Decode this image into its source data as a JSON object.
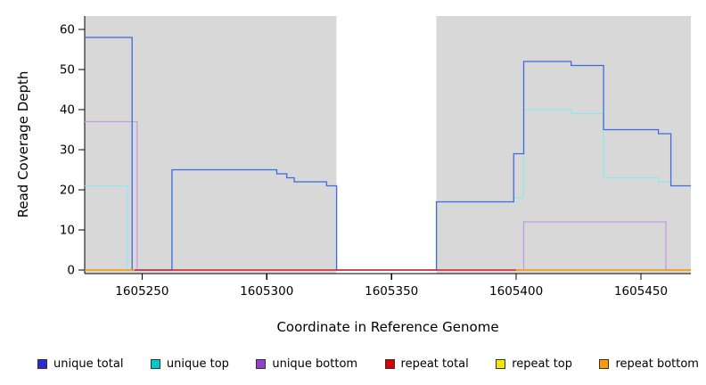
{
  "chart_data": {
    "type": "line",
    "title": "",
    "xlabel": "Coordinate in Reference Genome",
    "ylabel": "Read Coverage Depth",
    "xlim": [
      1605227,
      1605470
    ],
    "ylim": [
      0,
      63
    ],
    "x_ticks": [
      1605250,
      1605300,
      1605350,
      1605400,
      1605450
    ],
    "y_ticks": [
      0,
      10,
      20,
      30,
      40,
      50,
      60
    ],
    "grid": false,
    "legend_position": "bottom",
    "plot_background": "#d8d8d8",
    "uncovered_region_x": [
      1605328,
      1605368
    ],
    "draw_order": [
      "unique bottom",
      "unique top",
      "unique total",
      "repeat total",
      "repeat top",
      "repeat bottom"
    ],
    "series": [
      {
        "name": "unique total",
        "line_color": "#4169e1",
        "lines": [
          [
            [
              1605227,
              58
            ],
            [
              1605246,
              0
            ],
            [
              1605262,
              25
            ],
            [
              1605304,
              24
            ],
            [
              1605308,
              23
            ],
            [
              1605311,
              22
            ],
            [
              1605324,
              21
            ],
            [
              1605328,
              0
            ],
            [
              1605368,
              17
            ],
            [
              1605399,
              29
            ],
            [
              1605403,
              52
            ],
            [
              1605422,
              51
            ],
            [
              1605435,
              35
            ],
            [
              1605457,
              34
            ],
            [
              1605462,
              21
            ],
            [
              1605470,
              21
            ]
          ]
        ]
      },
      {
        "name": "unique top",
        "line_color": "#8fe8ec",
        "lines": [
          [
            [
              1605227,
              21
            ],
            [
              1605244,
              0
            ],
            [
              1605262,
              25
            ],
            [
              1605304,
              24
            ],
            [
              1605308,
              23
            ],
            [
              1605311,
              22
            ],
            [
              1605324,
              21
            ],
            [
              1605328,
              0
            ],
            [
              1605368,
              17
            ],
            [
              1605399,
              18
            ],
            [
              1605403,
              40
            ],
            [
              1605422,
              39
            ],
            [
              1605435,
              23
            ],
            [
              1605457,
              22
            ],
            [
              1605462,
              21
            ],
            [
              1605470,
              21
            ]
          ]
        ]
      },
      {
        "name": "unique bottom",
        "line_color": "#c49de0",
        "lines": [
          [
            [
              1605227,
              37
            ],
            [
              1605248,
              0
            ],
            [
              1605403,
              12
            ],
            [
              1605460,
              0
            ],
            [
              1605470,
              0
            ]
          ]
        ]
      },
      {
        "name": "repeat total",
        "line_color": "#d80000",
        "lines": [
          [
            [
              1605227,
              0
            ],
            [
              1605470,
              0
            ]
          ]
        ]
      },
      {
        "name": "repeat top",
        "line_color": "#f2e200",
        "lines": [
          [
            [
              1605227,
              0
            ],
            [
              1605247,
              0
            ]
          ],
          [
            [
              1605400,
              0
            ],
            [
              1605470,
              0
            ]
          ]
        ]
      },
      {
        "name": "repeat bottom",
        "line_color": "#ff9b00",
        "lines": [
          [
            [
              1605227,
              0
            ],
            [
              1605247,
              0
            ]
          ],
          [
            [
              1605400,
              0
            ],
            [
              1605470,
              0
            ]
          ]
        ]
      }
    ],
    "legend": [
      {
        "label": "unique total",
        "color": "#2b2bd5"
      },
      {
        "label": "unique top",
        "color": "#00c8cd"
      },
      {
        "label": "unique bottom",
        "color": "#9340cf"
      },
      {
        "label": "repeat total",
        "color": "#d80000"
      },
      {
        "label": "repeat top",
        "color": "#f5e500"
      },
      {
        "label": "repeat bottom",
        "color": "#ff9b00"
      }
    ]
  }
}
